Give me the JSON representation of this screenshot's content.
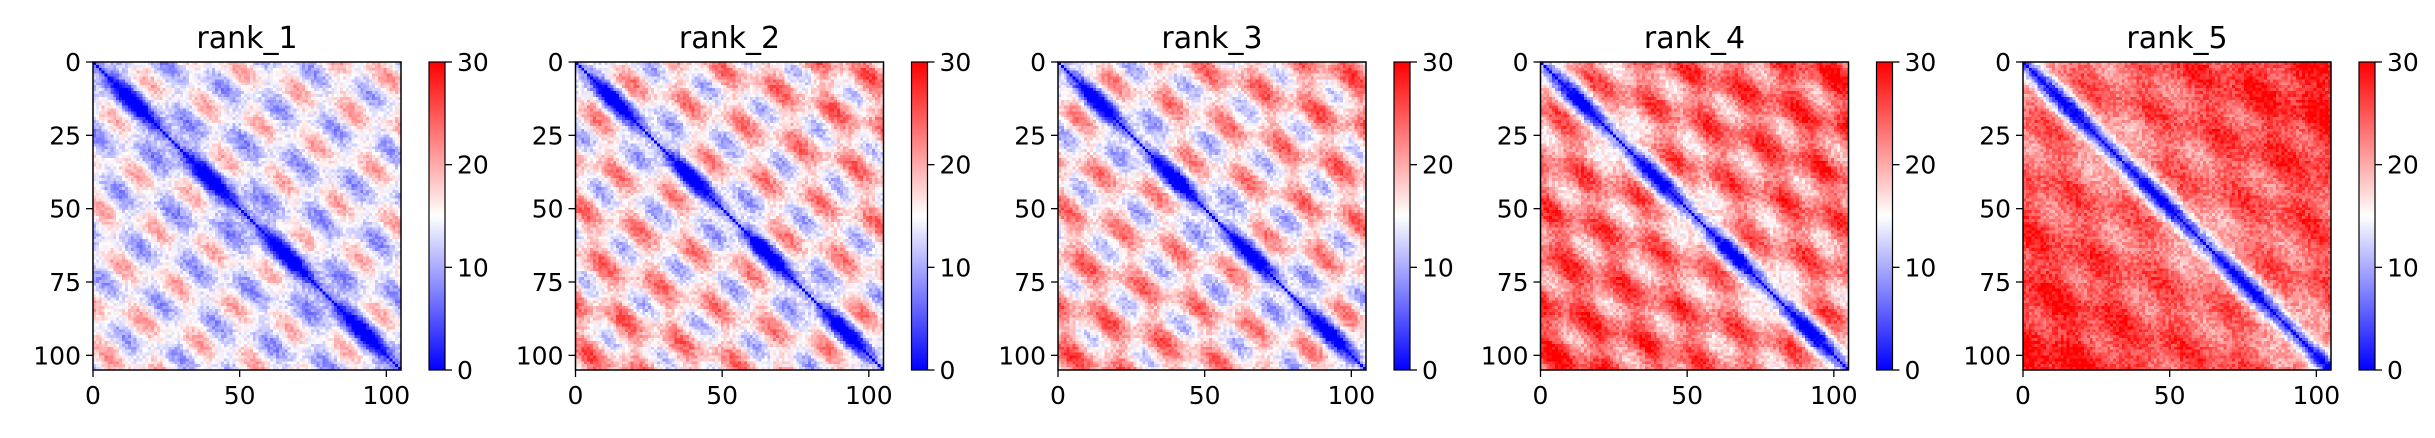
{
  "chart_data": [
    {
      "type": "heatmap",
      "title": "rank_1",
      "n": 106,
      "pattern": {
        "base": 13.5,
        "off_amp": 6.5,
        "period": 24,
        "band_width": 3.2,
        "band_strength": 12,
        "grad": 2,
        "noise": 2.2,
        "seed": 11
      },
      "xlim": [
        0,
        105
      ],
      "ylim": [
        105,
        0
      ],
      "xticks": [
        0,
        50,
        100
      ],
      "yticks": [
        0,
        25,
        50,
        75,
        100
      ],
      "colorbar": {
        "min": 0,
        "max": 30,
        "ticks": [
          0,
          10,
          20,
          30
        ]
      },
      "colormap": {
        "low": "#0000ff",
        "mid": "#ffffff",
        "high": "#ff0000"
      }
    },
    {
      "type": "heatmap",
      "title": "rank_2",
      "n": 106,
      "pattern": {
        "base": 15.5,
        "off_amp": 7.5,
        "period": 24,
        "band_width": 3.2,
        "band_strength": 13,
        "grad": 4,
        "noise": 2.4,
        "seed": 23
      },
      "xlim": [
        0,
        105
      ],
      "ylim": [
        105,
        0
      ],
      "xticks": [
        0,
        50,
        100
      ],
      "yticks": [
        0,
        25,
        50,
        75,
        100
      ],
      "colorbar": {
        "min": 0,
        "max": 30,
        "ticks": [
          0,
          10,
          20,
          30
        ]
      },
      "colormap": {
        "low": "#0000ff",
        "mid": "#ffffff",
        "high": "#ff0000"
      }
    },
    {
      "type": "heatmap",
      "title": "rank_3",
      "n": 106,
      "pattern": {
        "base": 15.5,
        "off_amp": 7.5,
        "period": 24,
        "band_width": 3.2,
        "band_strength": 13,
        "grad": 5,
        "noise": 2.4,
        "seed": 37
      },
      "xlim": [
        0,
        105
      ],
      "ylim": [
        105,
        0
      ],
      "xticks": [
        0,
        50,
        100
      ],
      "yticks": [
        0,
        25,
        50,
        75,
        100
      ],
      "colorbar": {
        "min": 0,
        "max": 30,
        "ticks": [
          0,
          10,
          20,
          30
        ]
      },
      "colormap": {
        "low": "#0000ff",
        "mid": "#ffffff",
        "high": "#ff0000"
      }
    },
    {
      "type": "heatmap",
      "title": "rank_4",
      "n": 106,
      "pattern": {
        "base": 20.5,
        "off_amp": 6,
        "period": 24,
        "band_width": 3.6,
        "band_strength": 18,
        "grad": 5,
        "noise": 2.6,
        "seed": 41
      },
      "xlim": [
        0,
        105
      ],
      "ylim": [
        105,
        0
      ],
      "xticks": [
        0,
        50,
        100
      ],
      "yticks": [
        0,
        25,
        50,
        75,
        100
      ],
      "colorbar": {
        "min": 0,
        "max": 30,
        "ticks": [
          0,
          10,
          20,
          30
        ]
      },
      "colormap": {
        "low": "#0000ff",
        "mid": "#ffffff",
        "high": "#ff0000"
      }
    },
    {
      "type": "heatmap",
      "title": "rank_5",
      "n": 106,
      "pattern": {
        "base": 22,
        "off_amp": 3.5,
        "period": 28,
        "band_width": 3.6,
        "band_strength": 20,
        "grad": 7,
        "noise": 2.8,
        "seed": 53
      },
      "xlim": [
        0,
        105
      ],
      "ylim": [
        105,
        0
      ],
      "xticks": [
        0,
        50,
        100
      ],
      "yticks": [
        0,
        25,
        50,
        75,
        100
      ],
      "colorbar": {
        "min": 0,
        "max": 30,
        "ticks": [
          0,
          10,
          20,
          30
        ]
      },
      "colormap": {
        "low": "#0000ff",
        "mid": "#ffffff",
        "high": "#ff0000"
      }
    }
  ]
}
